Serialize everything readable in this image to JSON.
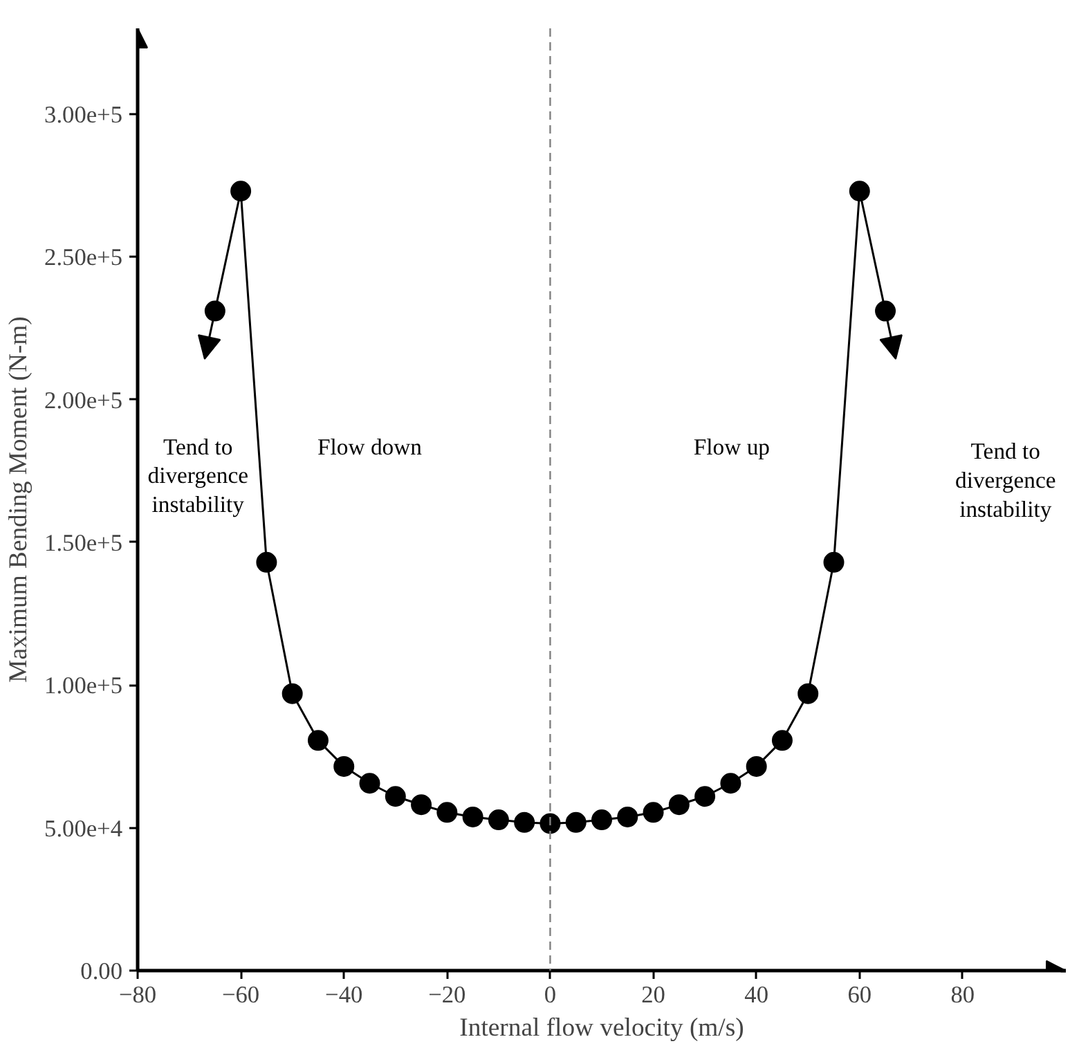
{
  "chart_data": {
    "type": "line",
    "xlabel": "Internal flow velocity (m/s)",
    "ylabel": "Maximum Bending Moment (N-m)",
    "x": [
      -65,
      -60,
      -55,
      -50,
      -45,
      -40,
      -35,
      -30,
      -25,
      -20,
      -15,
      -10,
      -5,
      0,
      5,
      10,
      15,
      20,
      25,
      30,
      35,
      40,
      45,
      50,
      55,
      60,
      65
    ],
    "series": [
      {
        "color": "#000000",
        "values": [
          231000,
          273000,
          143000,
          97000,
          80600,
          71500,
          65600,
          61000,
          58100,
          55400,
          53800,
          52800,
          51900,
          51500,
          51900,
          52800,
          53800,
          55400,
          58100,
          61000,
          65600,
          71500,
          80600,
          97000,
          143000,
          273000,
          231000
        ]
      }
    ],
    "marker": "circle",
    "line_style": "solid",
    "grid": false,
    "xlim": [
      -80,
      100
    ],
    "xticks": [
      -80,
      -60,
      -40,
      -20,
      0,
      20,
      40,
      60,
      80
    ],
    "ylim": [
      0,
      330000
    ],
    "yticks": [
      {
        "value": 0,
        "label": "0.00"
      },
      {
        "value": 50000,
        "label": "5.00e+4"
      },
      {
        "value": 100000,
        "label": "1.00e+5"
      },
      {
        "value": 150000,
        "label": "1.50e+5"
      },
      {
        "value": 200000,
        "label": "2.00e+5"
      },
      {
        "value": 250000,
        "label": "2.50e+5"
      },
      {
        "value": 300000,
        "label": "3.00e+5"
      }
    ],
    "ref_lines": [
      {
        "axis": "x",
        "value": 0,
        "color": "#808080",
        "line_style": "dashed"
      }
    ],
    "annotations": [
      "Tend to\ndivergence\ninstability",
      "Flow down",
      "Flow up",
      "Tend to\ndivergence\ninstability"
    ]
  }
}
